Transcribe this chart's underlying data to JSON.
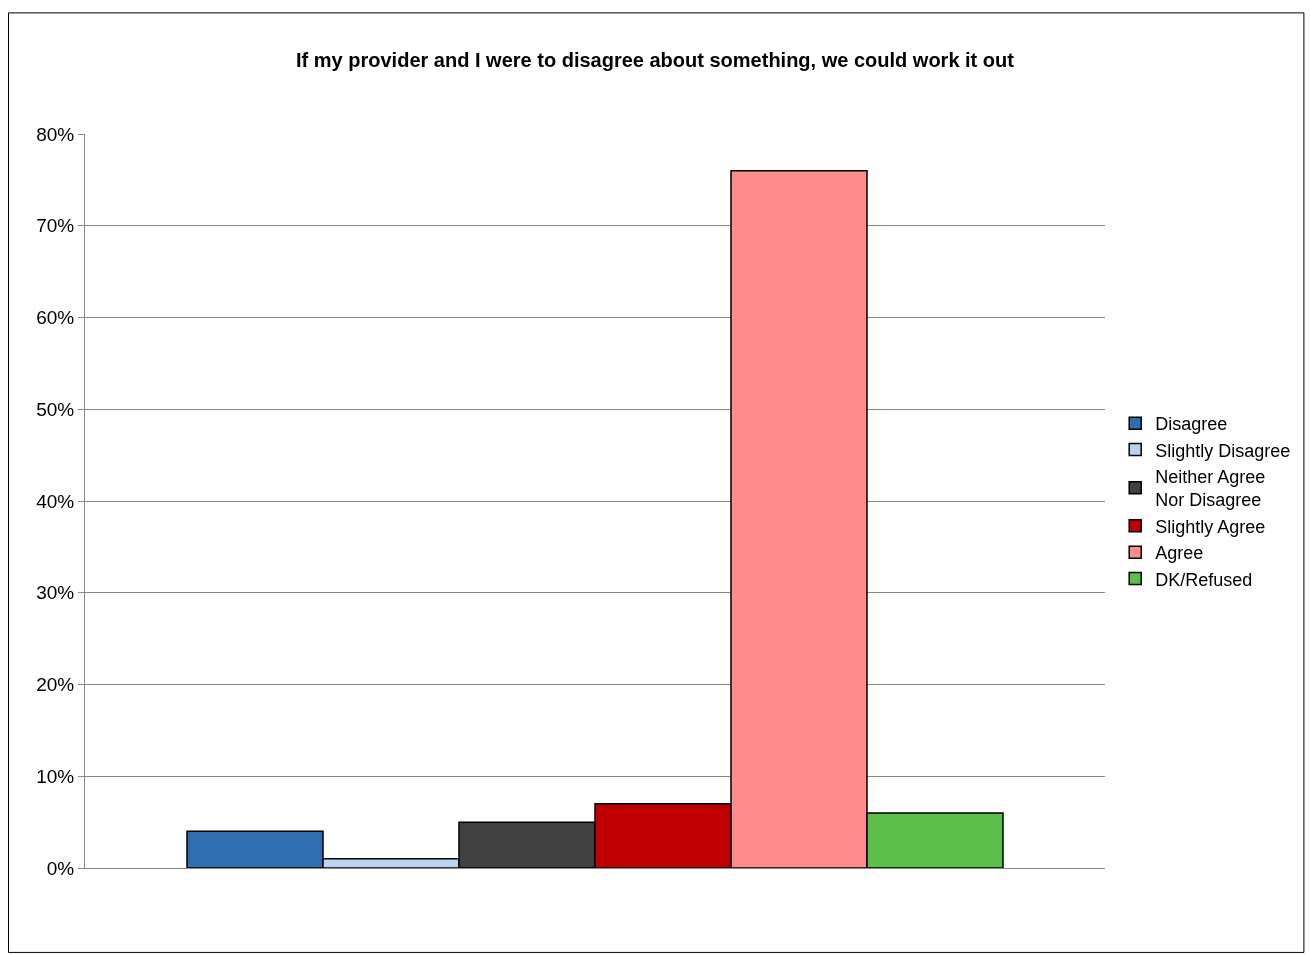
{
  "chart_data": {
    "type": "bar",
    "title": "If my provider and I were to disagree about something, we could work it out",
    "categories": [
      null
    ],
    "series": [
      {
        "name": "Disagree",
        "color": "#2e6db0",
        "values": [
          4
        ]
      },
      {
        "name": "Slightly Disagree",
        "color": "#b8d4f0",
        "values": [
          1
        ]
      },
      {
        "name": "Neither Agree Nor Disagree",
        "color": "#404040",
        "values": [
          5
        ]
      },
      {
        "name": "Slightly Agree",
        "color": "#c00000",
        "values": [
          7
        ]
      },
      {
        "name": "Agree",
        "color": "#ff8c8c",
        "values": [
          76
        ]
      },
      {
        "name": "DK/Refused",
        "color": "#5cbf4a",
        "values": [
          6
        ]
      }
    ],
    "ylim": [
      0,
      80
    ],
    "yticks": [
      {
        "value": 0,
        "label": "0%"
      },
      {
        "value": 10,
        "label": "10%"
      },
      {
        "value": 20,
        "label": "20%"
      },
      {
        "value": 30,
        "label": "30%"
      },
      {
        "value": 40,
        "label": "40%"
      },
      {
        "value": 50,
        "label": "50%"
      },
      {
        "value": 60,
        "label": "60%"
      },
      {
        "value": 70,
        "label": "70%"
      },
      {
        "value": 80,
        "label": "80%"
      }
    ],
    "grid": "y",
    "legend": "right"
  }
}
